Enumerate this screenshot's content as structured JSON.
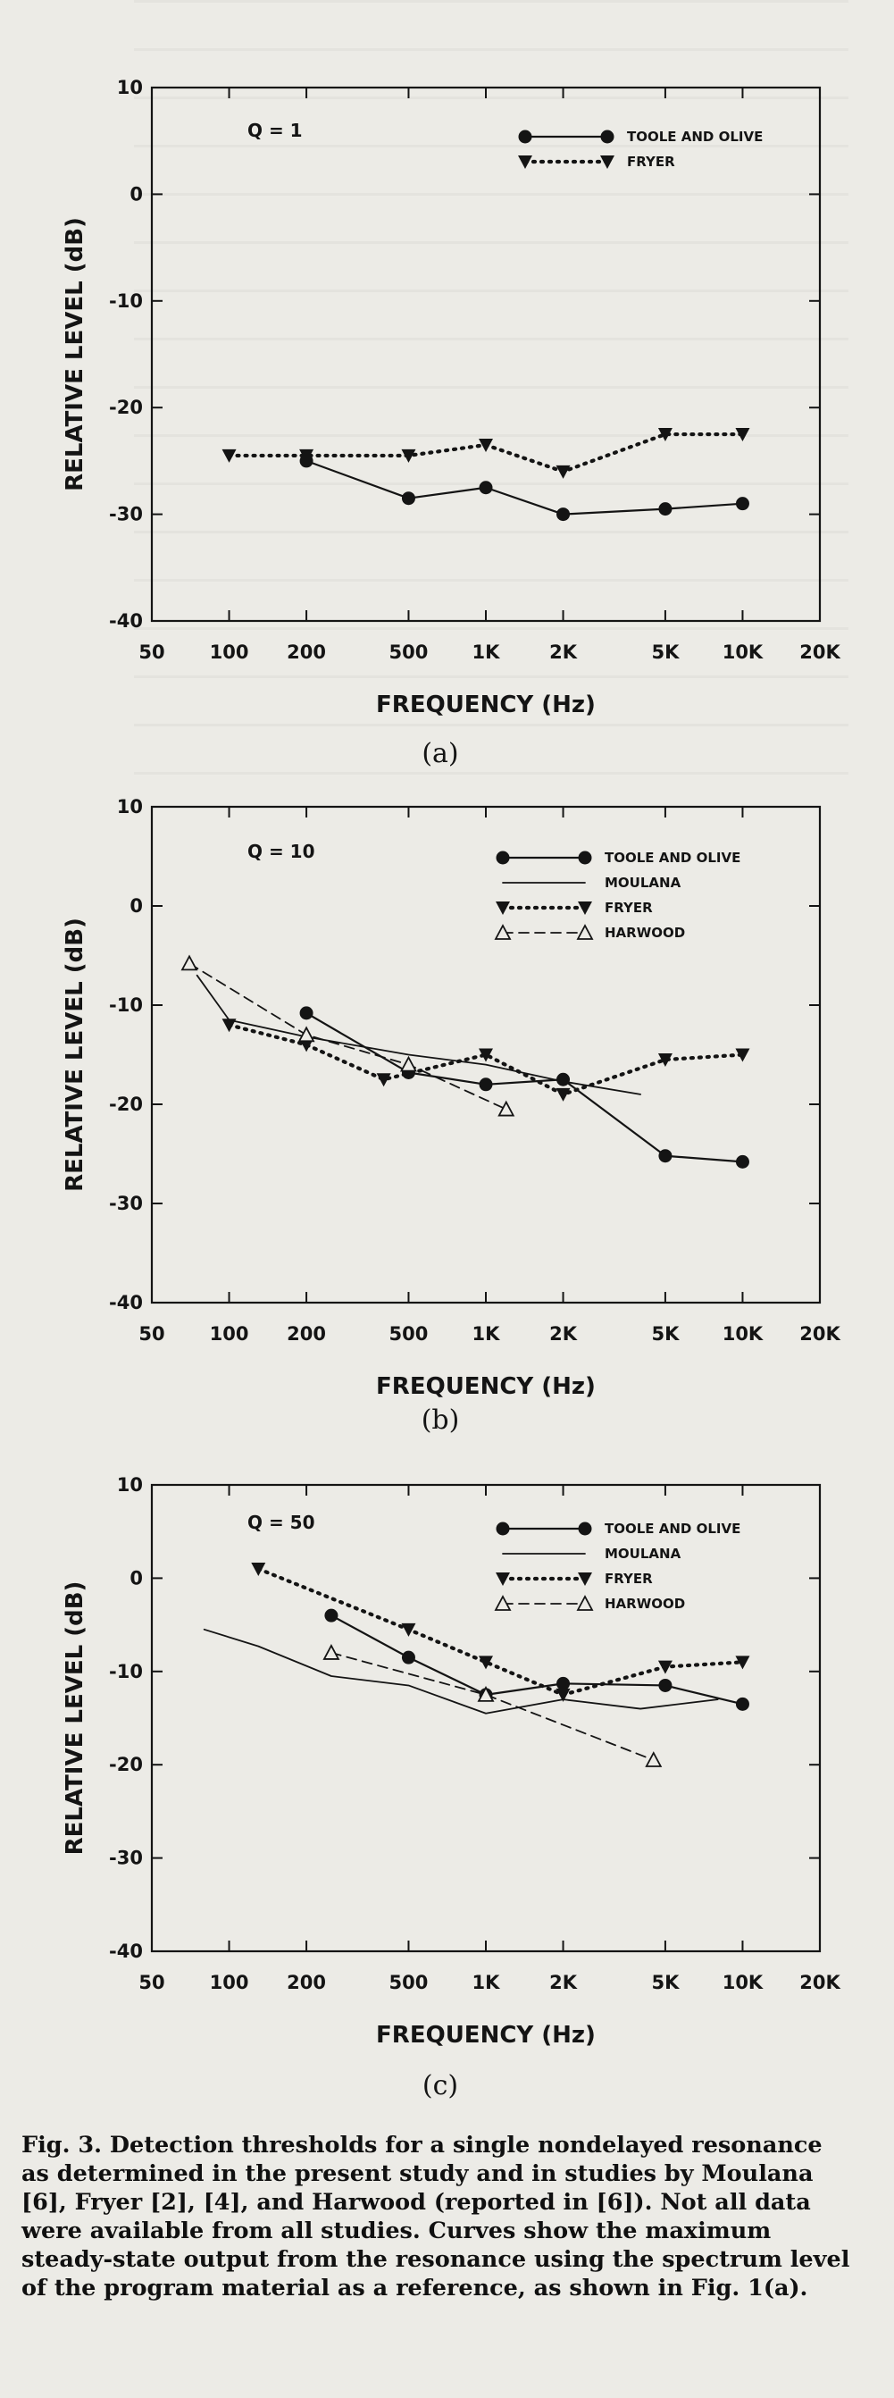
{
  "charts": [
    {
      "panel_label": "(a)",
      "q_label": "Q = 1",
      "xlabel": "FREQUENCY (Hz)",
      "ylabel": "RELATIVE LEVEL (dB)",
      "xticks": [
        "50",
        "100",
        "200",
        "500",
        "1K",
        "2K",
        "5K",
        "10K",
        "20K"
      ],
      "yticks": [
        "10",
        "0",
        "-10",
        "-20",
        "-30",
        "-40"
      ]
    },
    {
      "panel_label": "(b)",
      "q_label": "Q = 10",
      "xlabel": "FREQUENCY (Hz)",
      "ylabel": "RELATIVE LEVEL (dB)",
      "xticks": [
        "50",
        "100",
        "200",
        "500",
        "1K",
        "2K",
        "5K",
        "10K",
        "20K"
      ],
      "yticks": [
        "10",
        "0",
        "-10",
        "-20",
        "-30",
        "-40"
      ]
    },
    {
      "panel_label": "(c)",
      "q_label": "Q = 50",
      "xlabel": "FREQUENCY (Hz)",
      "ylabel": "RELATIVE LEVEL (dB)",
      "xticks": [
        "50",
        "100",
        "200",
        "500",
        "1K",
        "2K",
        "5K",
        "10K",
        "20K"
      ],
      "yticks": [
        "10",
        "0",
        "-10",
        "-20",
        "-30",
        "-40"
      ]
    }
  ],
  "caption": "Fig. 3. Detection thresholds for a single nondelayed resonance as determined in the present study and in studies by Moulana [6], Fryer [2], [4], and Harwood (reported in [6]). Not all data were available from all studies. Curves show the maximum steady-state output from the resonance using the spectrum level of the program material as a reference, as shown in Fig. 1(a).",
  "chart_data": [
    {
      "type": "line",
      "xscale": "log",
      "xlim": [
        50,
        20000
      ],
      "ylim": [
        -40,
        10
      ],
      "grid": false,
      "legend_position": "top-right",
      "series": [
        {
          "name": "TOOLE AND OLIVE",
          "x": [
            200,
            500,
            1000,
            2000,
            5000,
            10000
          ],
          "y": [
            -25,
            -28.5,
            -27.5,
            -30,
            -29.5,
            -29
          ],
          "color": "#141414",
          "style": "solid",
          "marker": "circle"
        },
        {
          "name": "FRYER",
          "x": [
            100,
            200,
            500,
            1000,
            2000,
            5000,
            10000
          ],
          "y": [
            -24.5,
            -24.5,
            -24.5,
            -23.5,
            -26,
            -22.5,
            -22.5
          ],
          "color": "#141414",
          "style": "dotted",
          "marker": "triangle-down"
        }
      ]
    },
    {
      "type": "line",
      "xscale": "log",
      "xlim": [
        50,
        20000
      ],
      "ylim": [
        -40,
        10
      ],
      "grid": false,
      "legend_position": "top-right",
      "series": [
        {
          "name": "TOOLE AND OLIVE",
          "x": [
            200,
            500,
            1000,
            2000,
            5000,
            10000
          ],
          "y": [
            -10.8,
            -16.8,
            -18,
            -17.5,
            -25.2,
            -25.8
          ],
          "color": "#141414",
          "style": "solid",
          "marker": "circle"
        },
        {
          "name": "MOULANA",
          "x": [
            75,
            100,
            200,
            500,
            1000,
            2000,
            4000
          ],
          "y": [
            -7,
            -11.5,
            -13.2,
            -15,
            -16,
            -17.7,
            -19
          ],
          "color": "#141414",
          "style": "solid-thin",
          "marker": "none"
        },
        {
          "name": "FRYER",
          "x": [
            100,
            200,
            400,
            1000,
            2000,
            5000,
            10000
          ],
          "y": [
            -12,
            -14,
            -17.5,
            -15,
            -19,
            -15.5,
            -15
          ],
          "color": "#141414",
          "style": "dotted",
          "marker": "triangle-down"
        },
        {
          "name": "HARWOOD",
          "x": [
            70,
            200,
            500,
            1200
          ],
          "y": [
            -5.8,
            -13,
            -16,
            -20.5
          ],
          "color": "#141414",
          "style": "dashed",
          "marker": "triangle-up"
        }
      ]
    },
    {
      "type": "line",
      "xscale": "log",
      "xlim": [
        50,
        20000
      ],
      "ylim": [
        -40,
        10
      ],
      "grid": false,
      "legend_position": "top-right",
      "series": [
        {
          "name": "TOOLE AND OLIVE",
          "x": [
            250,
            500,
            1000,
            2000,
            5000,
            10000
          ],
          "y": [
            -4,
            -8.5,
            -12.5,
            -11.3,
            -11.5,
            -13.5
          ],
          "color": "#141414",
          "style": "solid",
          "marker": "circle"
        },
        {
          "name": "MOULANA",
          "x": [
            80,
            130,
            250,
            500,
            1000,
            2000,
            4000,
            8000
          ],
          "y": [
            -5.5,
            -7.3,
            -10.5,
            -11.5,
            -14.5,
            -13,
            -14,
            -13
          ],
          "color": "#141414",
          "style": "solid-thin",
          "marker": "none"
        },
        {
          "name": "FRYER",
          "x": [
            130,
            500,
            1000,
            2000,
            5000,
            10000
          ],
          "y": [
            1,
            -5.5,
            -9,
            -12.5,
            -9.5,
            -9
          ],
          "color": "#141414",
          "style": "dotted",
          "marker": "triangle-down"
        },
        {
          "name": "HARWOOD",
          "x": [
            250,
            1000,
            4500
          ],
          "y": [
            -8,
            -12.5,
            -19.5
          ],
          "color": "#141414",
          "style": "dashed",
          "marker": "triangle-up"
        }
      ]
    }
  ]
}
